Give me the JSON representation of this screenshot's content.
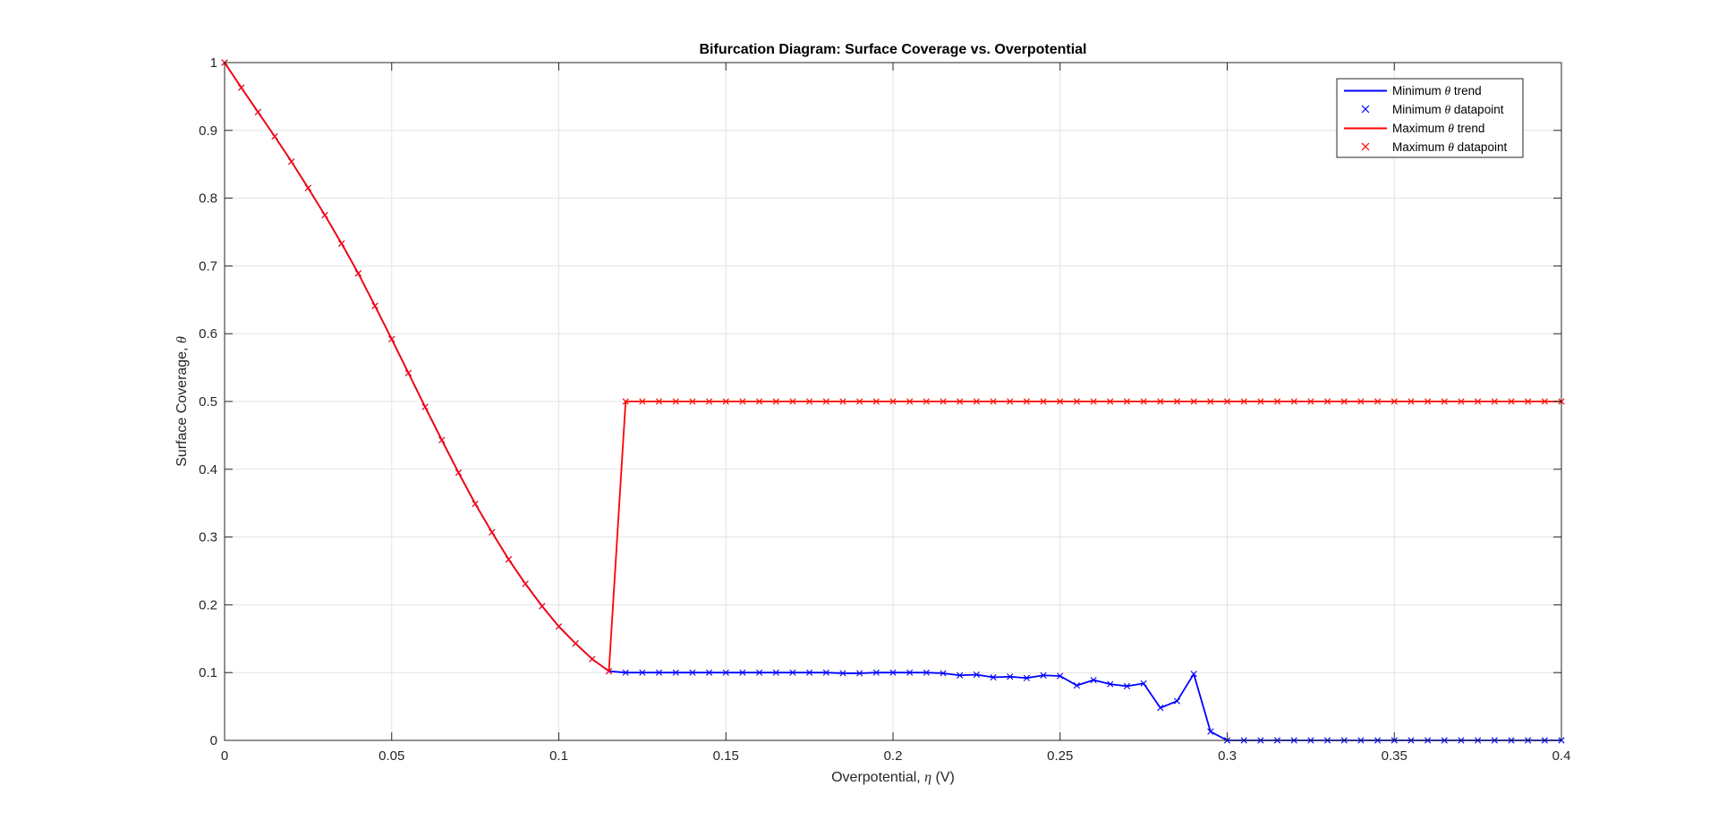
{
  "chart_data": {
    "type": "line",
    "title": "Bifurcation Diagram: Surface Coverage vs. Overpotential",
    "xlabel": {
      "pre": "Overpotential, ",
      "sym": "η",
      "post": " (V)"
    },
    "ylabel": {
      "pre": "Surface Coverage, ",
      "sym": "θ",
      "post": ""
    },
    "xlim": [
      0,
      0.4
    ],
    "ylim": [
      0,
      1
    ],
    "xticks": [
      0,
      0.05,
      0.1,
      0.15,
      0.2,
      0.25,
      0.3,
      0.35,
      0.4
    ],
    "xtick_labels": [
      "0",
      "0.05",
      "0.1",
      "0.15",
      "0.2",
      "0.25",
      "0.3",
      "0.35",
      "0.4"
    ],
    "yticks": [
      0,
      0.1,
      0.2,
      0.3,
      0.4,
      0.5,
      0.6,
      0.7,
      0.8,
      0.9,
      1
    ],
    "ytick_labels": [
      "0",
      "0.1",
      "0.2",
      "0.3",
      "0.4",
      "0.5",
      "0.6",
      "0.7",
      "0.8",
      "0.9",
      "1"
    ],
    "grid": true,
    "legend_position": "top-right",
    "legend": [
      {
        "pre": "Minimum ",
        "sym": "θ",
        "post": " trend",
        "kind": "line",
        "color": "#0000ff"
      },
      {
        "pre": "Minimum ",
        "sym": "θ",
        "post": " datapoint",
        "kind": "marker",
        "color": "#0000ff"
      },
      {
        "pre": "Maximum ",
        "sym": "θ",
        "post": " trend",
        "kind": "line",
        "color": "#ff0000"
      },
      {
        "pre": "Maximum ",
        "sym": "θ",
        "post": " datapoint",
        "kind": "marker",
        "color": "#ff0000"
      }
    ],
    "series": [
      {
        "color": "#0000ff",
        "x": [
          0,
          0.005,
          0.01,
          0.015,
          0.02,
          0.025,
          0.03,
          0.035,
          0.04,
          0.045,
          0.05,
          0.055,
          0.06,
          0.065,
          0.07,
          0.075,
          0.08,
          0.085,
          0.09,
          0.095,
          0.1,
          0.105,
          0.11,
          0.115,
          0.12,
          0.125,
          0.13,
          0.135,
          0.14,
          0.145,
          0.15,
          0.155,
          0.16,
          0.165,
          0.17,
          0.175,
          0.18,
          0.185,
          0.19,
          0.195,
          0.2,
          0.205,
          0.21,
          0.215,
          0.22,
          0.225,
          0.23,
          0.235,
          0.24,
          0.245,
          0.25,
          0.255,
          0.26,
          0.265,
          0.27,
          0.275,
          0.28,
          0.285,
          0.29,
          0.295,
          0.3,
          0.305,
          0.31,
          0.315,
          0.32,
          0.325,
          0.33,
          0.335,
          0.34,
          0.345,
          0.35,
          0.355,
          0.36,
          0.365,
          0.37,
          0.375,
          0.38,
          0.385,
          0.39,
          0.395,
          0.4
        ],
        "y": [
          1,
          0.963,
          0.927,
          0.891,
          0.854,
          0.815,
          0.775,
          0.733,
          0.689,
          0.641,
          0.592,
          0.542,
          0.492,
          0.443,
          0.395,
          0.349,
          0.307,
          0.267,
          0.231,
          0.198,
          0.168,
          0.143,
          0.12,
          0.102,
          0.1,
          0.1,
          0.1,
          0.1,
          0.1,
          0.1,
          0.1,
          0.1,
          0.1,
          0.1,
          0.1,
          0.1,
          0.1,
          0.099,
          0.099,
          0.1,
          0.1,
          0.1,
          0.1,
          0.099,
          0.096,
          0.097,
          0.093,
          0.094,
          0.092,
          0.096,
          0.095,
          0.081,
          0.089,
          0.083,
          0.08,
          0.084,
          0.048,
          0.058,
          0.098,
          0.013,
          0,
          0,
          0,
          0,
          0,
          0,
          0,
          0,
          0,
          0,
          0,
          0,
          0,
          0,
          0,
          0,
          0,
          0,
          0,
          0,
          0
        ]
      },
      {
        "color": "#ff0000",
        "x": [
          0,
          0.005,
          0.01,
          0.015,
          0.02,
          0.025,
          0.03,
          0.035,
          0.04,
          0.045,
          0.05,
          0.055,
          0.06,
          0.065,
          0.07,
          0.075,
          0.08,
          0.085,
          0.09,
          0.095,
          0.1,
          0.105,
          0.11,
          0.115,
          0.12,
          0.125,
          0.13,
          0.135,
          0.14,
          0.145,
          0.15,
          0.155,
          0.16,
          0.165,
          0.17,
          0.175,
          0.18,
          0.185,
          0.19,
          0.195,
          0.2,
          0.205,
          0.21,
          0.215,
          0.22,
          0.225,
          0.23,
          0.235,
          0.24,
          0.245,
          0.25,
          0.255,
          0.26,
          0.265,
          0.27,
          0.275,
          0.28,
          0.285,
          0.29,
          0.295,
          0.3,
          0.305,
          0.31,
          0.315,
          0.32,
          0.325,
          0.33,
          0.335,
          0.34,
          0.345,
          0.35,
          0.355,
          0.36,
          0.365,
          0.37,
          0.375,
          0.38,
          0.385,
          0.39,
          0.395,
          0.4
        ],
        "y": [
          1,
          0.963,
          0.927,
          0.891,
          0.854,
          0.815,
          0.775,
          0.733,
          0.689,
          0.641,
          0.592,
          0.542,
          0.492,
          0.443,
          0.395,
          0.349,
          0.307,
          0.267,
          0.231,
          0.198,
          0.168,
          0.143,
          0.12,
          0.102,
          0.5,
          0.5,
          0.5,
          0.5,
          0.5,
          0.5,
          0.5,
          0.5,
          0.5,
          0.5,
          0.5,
          0.5,
          0.5,
          0.5,
          0.5,
          0.5,
          0.5,
          0.5,
          0.5,
          0.5,
          0.5,
          0.5,
          0.5,
          0.5,
          0.5,
          0.5,
          0.5,
          0.5,
          0.5,
          0.5,
          0.5,
          0.5,
          0.5,
          0.5,
          0.5,
          0.5,
          0.5,
          0.5,
          0.5,
          0.5,
          0.5,
          0.5,
          0.5,
          0.5,
          0.5,
          0.5,
          0.5,
          0.5,
          0.5,
          0.5,
          0.5,
          0.5,
          0.5,
          0.5,
          0.5,
          0.5,
          0.5
        ]
      }
    ]
  }
}
